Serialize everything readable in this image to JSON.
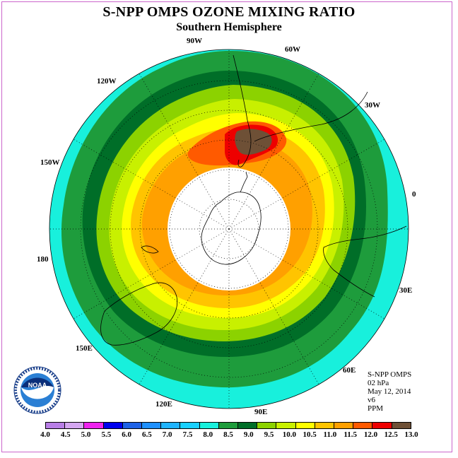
{
  "header": {
    "title": "S-NPP OMPS OZONE MIXING RATIO",
    "subtitle": "Southern Hemisphere"
  },
  "longitude_labels": [
    "90W",
    "60W",
    "30W",
    "0",
    "30E",
    "60E",
    "90E",
    "120E",
    "150E",
    "180",
    "150W",
    "120W"
  ],
  "info": {
    "instrument": "S-NPP OMPS",
    "level": "02 hPa",
    "date": "May 12, 2014",
    "version": "v6",
    "units": "PPM"
  },
  "logo": {
    "text": "NOAA",
    "ring_text": "NATIONAL OCEANIC AND ATMOSPHERIC ADMINISTRATION U.S. DEPARTMENT OF COMMERCE"
  },
  "colorbar": {
    "ticks": [
      "4.0",
      "4.5",
      "5.0",
      "5.5",
      "6.0",
      "6.5",
      "7.0",
      "7.5",
      "8.0",
      "8.5",
      "9.0",
      "9.5",
      "10.0",
      "10.5",
      "11.0",
      "11.5",
      "12.0",
      "12.5",
      "13.0"
    ],
    "colors": [
      "#b87ee6",
      "#d4a6f0",
      "#ee22ee",
      "#0000ee",
      "#1e62e6",
      "#1e90ff",
      "#20b4ff",
      "#18d0ff",
      "#18f0dc",
      "#1e9c3c",
      "#006e28",
      "#8cd200",
      "#c8f000",
      "#ffff00",
      "#ffc400",
      "#ffa000",
      "#ff5a00",
      "#ee0000",
      "#6e5036"
    ]
  }
}
